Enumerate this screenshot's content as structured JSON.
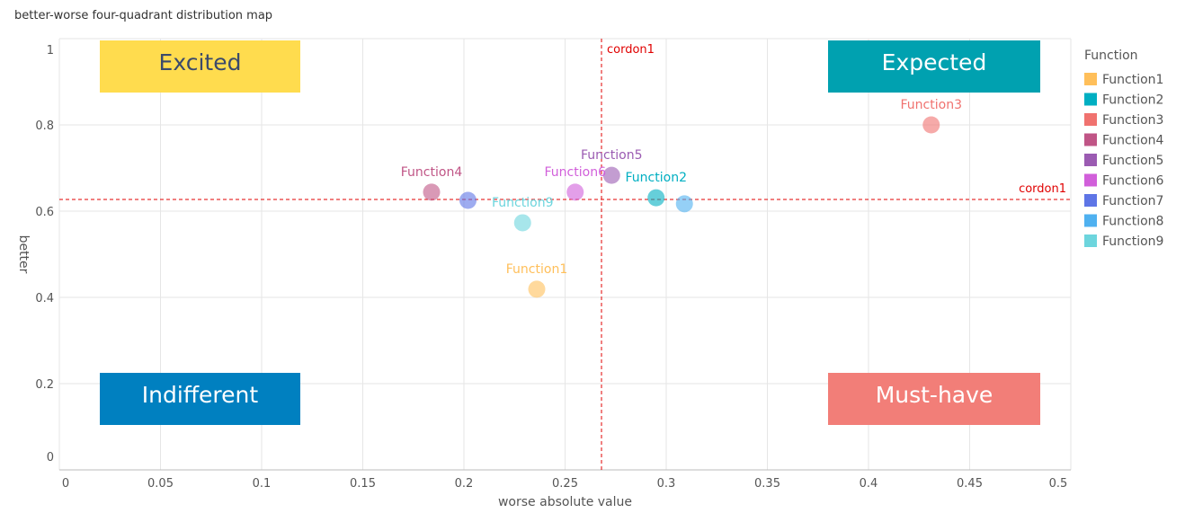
{
  "chart_data": {
    "type": "scatter",
    "title": "better-worse four-quadrant distribution map",
    "xlabel": "worse absolute value",
    "ylabel": "better",
    "xlim": [
      0,
      0.5
    ],
    "ylim": [
      0,
      1
    ],
    "xticks": [
      "0",
      "0.05",
      "0.1",
      "0.15",
      "0.2",
      "0.25",
      "0.3",
      "0.35",
      "0.4",
      "0.45",
      "0.5"
    ],
    "yticks": [
      "0",
      "0.2",
      "0.4",
      "0.6",
      "0.8",
      "1"
    ],
    "grid": true,
    "legend_title": "Function",
    "legend_position": "right",
    "series": [
      {
        "name": "Function1",
        "x": 0.236,
        "y": 0.419,
        "color": "#FFBF5A",
        "label_shown": true
      },
      {
        "name": "Function2",
        "x": 0.295,
        "y": 0.631,
        "color": "#00AFC2",
        "label_shown": true
      },
      {
        "name": "Function3",
        "x": 0.431,
        "y": 0.8,
        "color": "#F0726F",
        "label_shown": true
      },
      {
        "name": "Function4",
        "x": 0.184,
        "y": 0.644,
        "color": "#C05586",
        "label_shown": true
      },
      {
        "name": "Function5",
        "x": 0.273,
        "y": 0.683,
        "color": "#9B5BB2",
        "label_shown": true
      },
      {
        "name": "Function6",
        "x": 0.255,
        "y": 0.644,
        "color": "#D15FDA",
        "label_shown": true
      },
      {
        "name": "Function7",
        "x": 0.202,
        "y": 0.625,
        "color": "#5E75E6",
        "label_shown": false
      },
      {
        "name": "Function8",
        "x": 0.309,
        "y": 0.617,
        "color": "#4FB1F0",
        "label_shown": false
      },
      {
        "name": "Function9",
        "x": 0.229,
        "y": 0.573,
        "color": "#6DD5DD",
        "label_shown": true
      }
    ],
    "cordons": {
      "x": 0.268,
      "y": 0.627,
      "label": "cordon1",
      "color": "#E00000"
    },
    "quadrants": [
      {
        "label": "Excited",
        "bg": "#FFDC4E",
        "fg": "#3B4A6B",
        "pos": "top-left"
      },
      {
        "label": "Expected",
        "bg": "#00A1B0",
        "fg": "#ffffff",
        "pos": "top-right"
      },
      {
        "label": "Indifferent",
        "bg": "#0080C0",
        "fg": "#ffffff",
        "pos": "bottom-left"
      },
      {
        "label": "Must-have",
        "bg": "#F27E78",
        "fg": "#ffffff",
        "pos": "bottom-right"
      }
    ]
  }
}
